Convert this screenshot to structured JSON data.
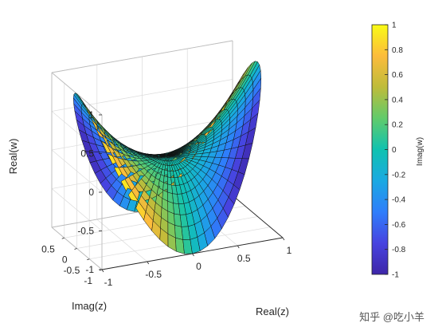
{
  "chart_data": {
    "type": "surface",
    "title": "",
    "xlabel": "Real(z)",
    "ylabel": "Imag(z)",
    "zlabel": "Real(w)",
    "colorbar_label": "Imag(w)",
    "colormap": "parula",
    "colormap_colors": [
      "#3e26a8",
      "#4743e0",
      "#2f7efb",
      "#1aa9e2",
      "#10c2b0",
      "#61cb6b",
      "#bebc3a",
      "#fcbc3c",
      "#f9fb15"
    ],
    "xlim": [
      -1,
      1
    ],
    "ylim": [
      -1,
      1
    ],
    "zlim": [
      -1,
      1
    ],
    "clim": [
      -1,
      1
    ],
    "x_ticks": [
      "-1",
      "-0.5",
      "0",
      "0.5",
      "1"
    ],
    "y_ticks": [
      "-1",
      "-0.5",
      "0",
      "0.5"
    ],
    "z_ticks": [
      "-1",
      "-0.5",
      "0",
      "0.5",
      "1"
    ],
    "colorbar_ticks": [
      "-1",
      "-0.8",
      "-0.6",
      "-0.4",
      "-0.2",
      "0",
      "0.2",
      "0.4",
      "0.6",
      "0.8",
      "1"
    ],
    "grid": true,
    "view": {
      "azimuth_deg": -37.5,
      "elevation_deg": 30
    },
    "surface": {
      "function": "w = z^2",
      "domain": "unit disk, polar mesh",
      "radial_samples": 13,
      "angular_samples": 72
    },
    "legend": "colorbar right"
  },
  "watermark": "知乎 @吃小羊"
}
